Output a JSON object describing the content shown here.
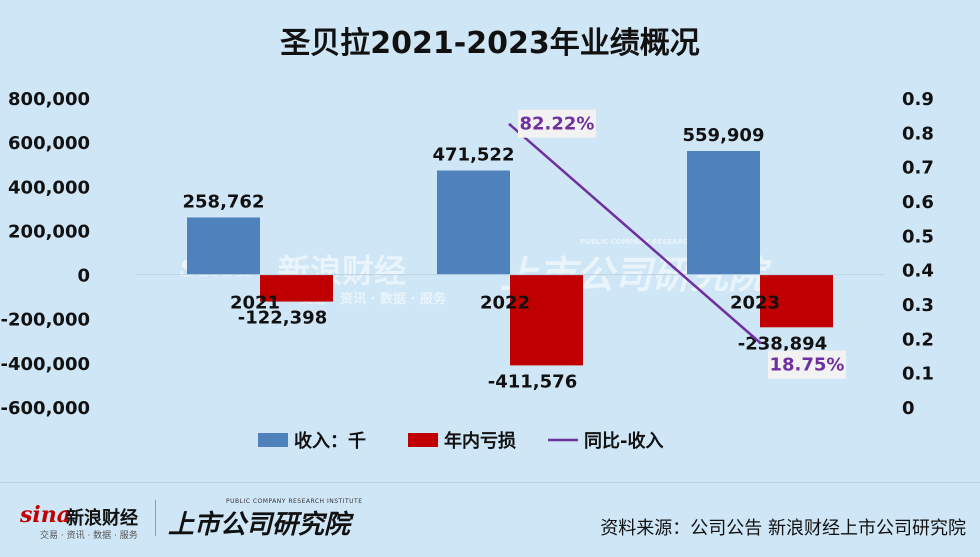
{
  "title": "圣贝拉2021-2023年业绩概况",
  "source": "资料来源：公司公告 新浪财经上市公司研究院",
  "logo": {
    "sina": "sina",
    "sina_cn": "新浪财经",
    "sina_sub": "交易 · 资讯 · 数据 · 服务",
    "institute_en": "PUBLIC COMPANY RESEARCH INSTITUTE",
    "institute_cn": "上市公司研究院"
  },
  "colors": {
    "revenue": "#4f81bd",
    "loss": "#c00000",
    "yoy": "#7030a0",
    "background": "#cfe6f6"
  },
  "chart_data": {
    "type": "bar",
    "categories": [
      "2021",
      "2022",
      "2023"
    ],
    "series": [
      {
        "name": "收入：千",
        "type": "bar",
        "axis": "left",
        "values": [
          258762,
          471522,
          559909
        ],
        "labels": [
          "258,762",
          "471,522",
          "559,909"
        ]
      },
      {
        "name": "年内亏损",
        "type": "bar",
        "axis": "left",
        "values": [
          -122398,
          -411576,
          -238894
        ],
        "labels": [
          "-122,398",
          "-411,576",
          "-238,894"
        ]
      },
      {
        "name": "同比-收入",
        "type": "line",
        "axis": "right",
        "x": [
          "2022",
          "2023"
        ],
        "values": [
          0.8222,
          0.1875
        ],
        "labels": [
          "82.22%",
          "18.75%"
        ]
      }
    ],
    "y_left": {
      "ylim": [
        -600000,
        800000
      ],
      "ticks": [
        "800,000",
        "600,000",
        "400,000",
        "200,000",
        "0",
        "-200,000",
        "-400,000",
        "-600,000"
      ],
      "tick_values": [
        800000,
        600000,
        400000,
        200000,
        0,
        -200000,
        -400000,
        -600000
      ]
    },
    "y_right": {
      "ylim": [
        0,
        0.9
      ],
      "ticks": [
        "0.9",
        "0.8",
        "0.7",
        "0.6",
        "0.5",
        "0.4",
        "0.3",
        "0.2",
        "0.1",
        "0"
      ],
      "tick_values": [
        0.9,
        0.8,
        0.7,
        0.6,
        0.5,
        0.4,
        0.3,
        0.2,
        0.1,
        0
      ]
    },
    "grid": false,
    "legend_position": "bottom"
  }
}
